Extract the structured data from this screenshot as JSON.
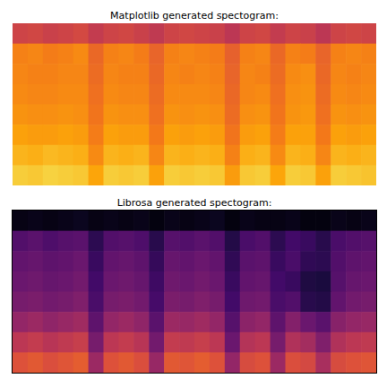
{
  "chart_data": [
    {
      "type": "heatmap",
      "title": "Matplotlib generated spectogram:",
      "tick_labels": false,
      "zlim": [
        0,
        1
      ],
      "cells": [
        [
          0.55,
          0.56,
          0.54,
          0.55,
          0.57,
          0.52,
          0.55,
          0.56,
          0.54,
          0.51,
          0.55,
          0.56,
          0.55,
          0.54,
          0.5,
          0.55,
          0.56,
          0.52,
          0.55,
          0.54,
          0.5,
          0.55,
          0.56,
          0.55
        ],
        [
          0.72,
          0.73,
          0.71,
          0.72,
          0.74,
          0.66,
          0.72,
          0.73,
          0.71,
          0.65,
          0.72,
          0.73,
          0.72,
          0.71,
          0.64,
          0.72,
          0.73,
          0.66,
          0.72,
          0.71,
          0.65,
          0.72,
          0.73,
          0.72
        ],
        [
          0.73,
          0.72,
          0.72,
          0.73,
          0.73,
          0.67,
          0.73,
          0.72,
          0.72,
          0.66,
          0.73,
          0.72,
          0.73,
          0.72,
          0.65,
          0.73,
          0.72,
          0.67,
          0.74,
          0.75,
          0.66,
          0.73,
          0.72,
          0.73
        ],
        [
          0.74,
          0.73,
          0.73,
          0.74,
          0.74,
          0.68,
          0.74,
          0.73,
          0.73,
          0.67,
          0.74,
          0.74,
          0.74,
          0.73,
          0.66,
          0.73,
          0.74,
          0.68,
          0.75,
          0.76,
          0.67,
          0.74,
          0.73,
          0.74
        ],
        [
          0.76,
          0.75,
          0.75,
          0.76,
          0.75,
          0.69,
          0.76,
          0.75,
          0.75,
          0.68,
          0.76,
          0.75,
          0.76,
          0.75,
          0.67,
          0.75,
          0.76,
          0.69,
          0.76,
          0.77,
          0.68,
          0.76,
          0.75,
          0.76
        ],
        [
          0.79,
          0.78,
          0.78,
          0.79,
          0.78,
          0.71,
          0.79,
          0.78,
          0.78,
          0.7,
          0.79,
          0.78,
          0.79,
          0.78,
          0.69,
          0.78,
          0.79,
          0.71,
          0.79,
          0.79,
          0.7,
          0.79,
          0.78,
          0.79
        ],
        [
          0.83,
          0.82,
          0.84,
          0.83,
          0.82,
          0.74,
          0.83,
          0.82,
          0.83,
          0.73,
          0.83,
          0.82,
          0.83,
          0.82,
          0.72,
          0.82,
          0.83,
          0.74,
          0.83,
          0.82,
          0.73,
          0.83,
          0.82,
          0.83
        ],
        [
          0.88,
          0.87,
          0.89,
          0.88,
          0.87,
          0.8,
          0.88,
          0.87,
          0.88,
          0.79,
          0.88,
          0.87,
          0.88,
          0.87,
          0.78,
          0.87,
          0.88,
          0.8,
          0.88,
          0.87,
          0.79,
          0.88,
          0.87,
          0.86
        ]
      ]
    },
    {
      "type": "heatmap",
      "title": "Librosa generated spectogram:",
      "tick_labels": false,
      "zlim": [
        0,
        1
      ],
      "cells": [
        [
          0.03,
          0.04,
          0.03,
          0.04,
          0.05,
          0.03,
          0.04,
          0.03,
          0.04,
          0.02,
          0.04,
          0.03,
          0.04,
          0.05,
          0.02,
          0.04,
          0.03,
          0.03,
          0.04,
          0.02,
          0.02,
          0.04,
          0.03,
          0.04
        ],
        [
          0.24,
          0.26,
          0.23,
          0.25,
          0.26,
          0.15,
          0.24,
          0.25,
          0.23,
          0.14,
          0.25,
          0.24,
          0.26,
          0.24,
          0.13,
          0.22,
          0.24,
          0.15,
          0.2,
          0.18,
          0.14,
          0.22,
          0.24,
          0.25
        ],
        [
          0.28,
          0.29,
          0.27,
          0.28,
          0.3,
          0.18,
          0.28,
          0.29,
          0.27,
          0.17,
          0.29,
          0.28,
          0.3,
          0.28,
          0.16,
          0.26,
          0.27,
          0.18,
          0.22,
          0.16,
          0.15,
          0.24,
          0.27,
          0.28
        ],
        [
          0.3,
          0.31,
          0.29,
          0.3,
          0.32,
          0.2,
          0.3,
          0.31,
          0.29,
          0.19,
          0.31,
          0.3,
          0.32,
          0.3,
          0.18,
          0.28,
          0.29,
          0.2,
          0.18,
          0.12,
          0.11,
          0.25,
          0.29,
          0.3
        ],
        [
          0.33,
          0.34,
          0.32,
          0.33,
          0.35,
          0.22,
          0.33,
          0.34,
          0.32,
          0.21,
          0.34,
          0.33,
          0.35,
          0.33,
          0.2,
          0.31,
          0.32,
          0.22,
          0.24,
          0.14,
          0.13,
          0.28,
          0.32,
          0.33
        ],
        [
          0.4,
          0.42,
          0.39,
          0.41,
          0.43,
          0.27,
          0.4,
          0.42,
          0.39,
          0.26,
          0.42,
          0.41,
          0.43,
          0.4,
          0.25,
          0.38,
          0.4,
          0.27,
          0.36,
          0.3,
          0.26,
          0.37,
          0.4,
          0.41
        ],
        [
          0.5,
          0.52,
          0.49,
          0.51,
          0.53,
          0.33,
          0.5,
          0.52,
          0.49,
          0.32,
          0.52,
          0.51,
          0.53,
          0.5,
          0.3,
          0.48,
          0.5,
          0.33,
          0.47,
          0.44,
          0.35,
          0.47,
          0.5,
          0.51
        ],
        [
          0.6,
          0.62,
          0.59,
          0.61,
          0.63,
          0.42,
          0.6,
          0.62,
          0.59,
          0.41,
          0.62,
          0.61,
          0.63,
          0.6,
          0.4,
          0.58,
          0.6,
          0.42,
          0.59,
          0.57,
          0.45,
          0.58,
          0.6,
          0.61
        ]
      ]
    }
  ]
}
